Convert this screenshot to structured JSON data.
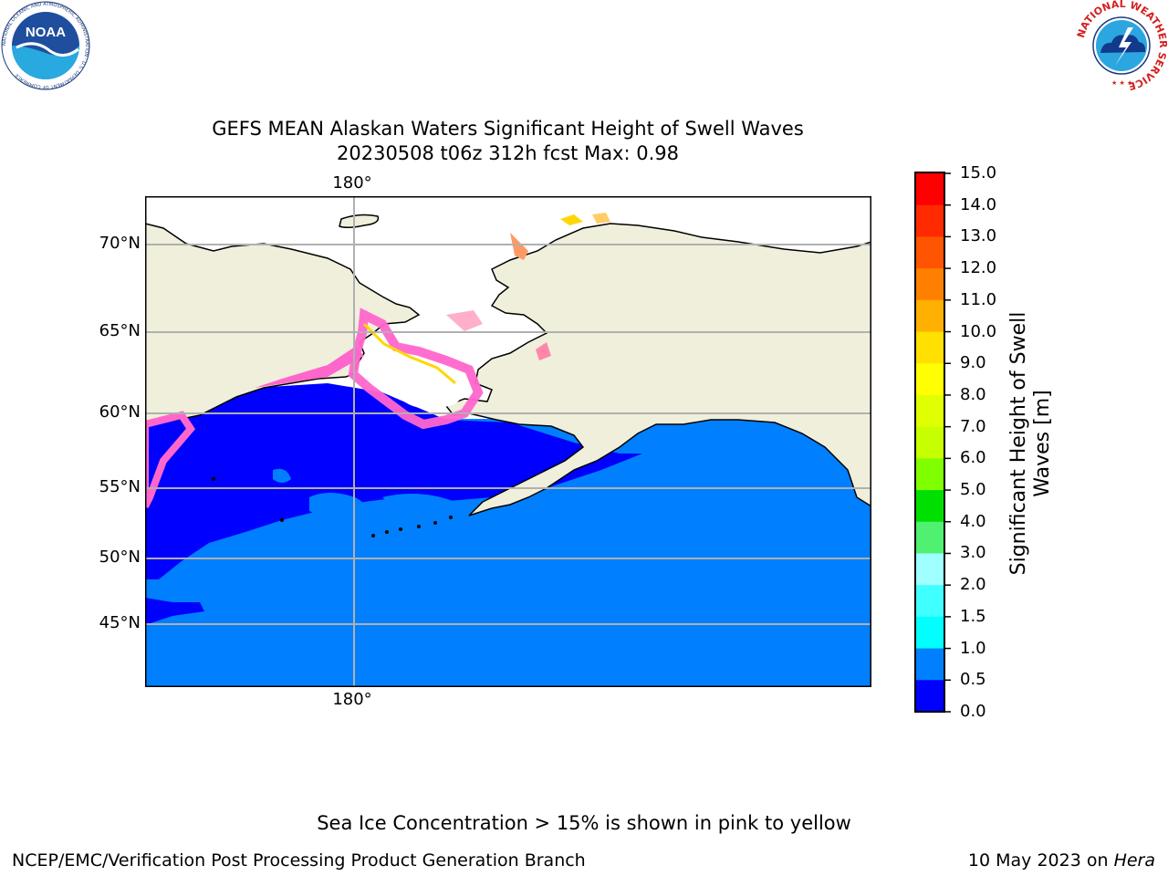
{
  "header": {
    "noaa_logo_text": "NOAA",
    "noaa_ring_text": "NATIONAL OCEANIC AND ATMOSPHERIC ADMINISTRATION · U.S. DEPARTMENT OF COMMERCE",
    "nws_ring_text": "NATIONAL WEATHER SERVICE"
  },
  "map": {
    "title_line1": "GEFS MEAN Alaskan Waters Significant Height of Swell Waves",
    "title_line2": "20230508 t06z 312h fcst   Max: 0.98",
    "lat_labels": [
      "70°N",
      "65°N",
      "60°N",
      "55°N",
      "50°N",
      "45°N"
    ],
    "lon_label_top": "180°",
    "lon_label_bottom": "180°",
    "colors": {
      "ocean_low": "#0080ff",
      "ocean_lowest": "#0000ff",
      "land": "#efefdc",
      "ice_pink": "#ff66cc",
      "ice_yellow": "#ffd700",
      "grid": "#b0b0b0"
    }
  },
  "colorbar": {
    "title_line1": "Significant Height of Swell",
    "title_line2": "Waves [m]",
    "ticks": [
      "15.0",
      "14.0",
      "13.0",
      "12.0",
      "11.0",
      "10.0",
      "9.0",
      "8.0",
      "7.0",
      "6.0",
      "5.0",
      "4.0",
      "3.0",
      "2.0",
      "1.5",
      "1.0",
      "0.5",
      "0.0"
    ],
    "colors": [
      "#ff0000",
      "#ff2a00",
      "#ff5500",
      "#ff8000",
      "#ffb000",
      "#ffe000",
      "#ffff00",
      "#e0ff00",
      "#c8ff00",
      "#80ff00",
      "#00e000",
      "#50f070",
      "#a0ffff",
      "#40ffff",
      "#00ffff",
      "#0080ff",
      "#0000ff"
    ]
  },
  "footer": {
    "ice_note": "Sea Ice Concentration > 15% is shown in pink to yellow",
    "left": "NCEP/EMC/Verification Post Processing Product Generation Branch",
    "right_date": "10 May 2023 on ",
    "right_host": "Hera"
  }
}
